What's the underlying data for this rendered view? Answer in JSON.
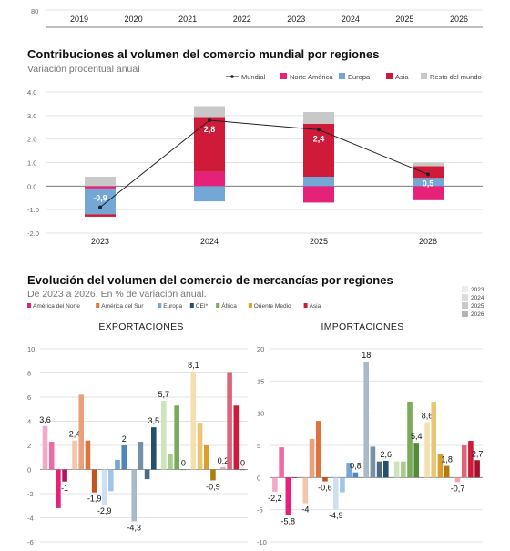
{
  "top_strip": {
    "tick_label": "80",
    "years": [
      "2019",
      "2020",
      "2021",
      "2022",
      "2023",
      "2024",
      "2025",
      "2026"
    ]
  },
  "colors": {
    "norteamerica": "#e6217a",
    "europa": "#74a6d6",
    "asia": "#cf1a3a",
    "resto": "#c8c8c8",
    "mundial_line": "#222222",
    "grid": "#e3e3e3"
  },
  "chart_data": [
    {
      "type": "bar",
      "stacked": true,
      "title": "Contribuciones al volumen del comercio mundial por regiones",
      "subtitle": "Variación procentual anual",
      "categories": [
        "2023",
        "2024",
        "2025",
        "2026"
      ],
      "ylim": [
        -2,
        4
      ],
      "yticks": [
        "4.0",
        "3.0",
        "2.0",
        "1.0",
        "0.0",
        "-1.0",
        "-2.0"
      ],
      "grid": true,
      "legend_position": "top-right",
      "series": [
        {
          "name": "Norte América",
          "key": "norteamerica",
          "values": [
            -0.1,
            0.6,
            -0.7,
            -0.6
          ]
        },
        {
          "name": "Europa",
          "key": "europa",
          "values": [
            -1.1,
            -0.65,
            0.4,
            0.35
          ]
        },
        {
          "name": "Asia",
          "key": "asia",
          "values": [
            -0.1,
            2.3,
            2.25,
            0.5
          ]
        },
        {
          "name": "Resto del mundo",
          "key": "resto",
          "values": [
            0.4,
            0.5,
            0.5,
            0.15
          ]
        }
      ],
      "line": {
        "name": "Mundial",
        "values": [
          -0.9,
          2.8,
          2.4,
          0.5
        ],
        "labels": [
          "-0,9",
          "2,8",
          "2,4",
          "0,5"
        ]
      }
    },
    {
      "type": "bar",
      "title": "EXPORTACIONES",
      "ylim": [
        -6,
        10
      ],
      "yticks": [
        "10",
        "8",
        "6",
        "4",
        "2",
        "0",
        "-2",
        "-4",
        "-6"
      ],
      "categories": [
        "América del Norte",
        "América del Sur",
        "Europa",
        "CEI*",
        "África",
        "Oriente Medio",
        "Asia"
      ],
      "years": [
        "2023",
        "2024",
        "2025",
        "2026"
      ],
      "values": [
        [
          3.6,
          2.3,
          -3.2,
          -1.0
        ],
        [
          2.4,
          6.2,
          2.4,
          -1.9
        ],
        [
          -2.9,
          -1.8,
          0.8,
          2.0
        ],
        [
          -4.3,
          2.3,
          -0.8,
          3.5
        ],
        [
          5.7,
          1.3,
          5.3,
          0.0
        ],
        [
          8.1,
          3.8,
          2.0,
          -0.9
        ],
        [
          0.2,
          8.0,
          5.3,
          0.0
        ]
      ],
      "labels": [
        [
          "3,6",
          "",
          "",
          "-1"
        ],
        [
          "2,4",
          "",
          "",
          "-1,9"
        ],
        [
          "-2,9",
          "",
          "",
          "2"
        ],
        [
          "-4,3",
          "",
          "",
          "3,5"
        ],
        [
          "5,7",
          "",
          "",
          "0"
        ],
        [
          "8,1",
          "",
          "",
          "-0,9"
        ],
        [
          "0,2",
          "",
          "",
          "0"
        ]
      ]
    },
    {
      "type": "bar",
      "title": "IMPORTACIONES",
      "ylim": [
        -10,
        20
      ],
      "yticks": [
        "20",
        "15",
        "10",
        "5",
        "0",
        "-5",
        "-10"
      ],
      "categories": [
        "América del Norte",
        "América del Sur",
        "Europa",
        "CEI*",
        "África",
        "Oriente Medio",
        "Asia"
      ],
      "years": [
        "2023",
        "2024",
        "2025",
        "2026"
      ],
      "values": [
        [
          -2.2,
          4.7,
          -5.8,
          0.0
        ],
        [
          -4.0,
          6.0,
          8.8,
          -0.6
        ],
        [
          -4.9,
          -2.3,
          2.3,
          0.8
        ],
        [
          18.0,
          4.8,
          2.5,
          2.6
        ],
        [
          2.5,
          2.5,
          11.8,
          5.4
        ],
        [
          8.6,
          11.8,
          3.6,
          1.8
        ],
        [
          -0.7,
          5.0,
          5.7,
          2.7
        ]
      ],
      "labels": [
        [
          "-2,2",
          "",
          "-5,8",
          ""
        ],
        [
          "-4",
          "",
          "",
          "-0,6"
        ],
        [
          "-4,9",
          "",
          "",
          "0,8"
        ],
        [
          "18",
          "",
          "",
          "2,6"
        ],
        [
          "",
          "",
          "",
          "5,4"
        ],
        [
          "8,6",
          "",
          "",
          "1,8"
        ],
        [
          "-0,7",
          "",
          "",
          "2,7"
        ]
      ]
    }
  ],
  "section2": {
    "title": "Evolución del volumen del comercio de mercancías por regiones",
    "subtitle": "De 2023 a 2026. En % de variación anual.",
    "region_legend": [
      {
        "name": "América del Norte",
        "color": "#e6217a"
      },
      {
        "name": "América del Sur",
        "color": "#e0733b"
      },
      {
        "name": "Europa",
        "color": "#74a6d6"
      },
      {
        "name": "CEI*",
        "color": "#24506e"
      },
      {
        "name": "África",
        "color": "#7aaa5a"
      },
      {
        "name": "Oriente Medio",
        "color": "#d9a02c"
      },
      {
        "name": "Asia",
        "color": "#cf1a3a"
      }
    ],
    "year_legend": [
      "2023",
      "2024",
      "2025",
      "2026"
    ],
    "shades": {
      "América del Norte": [
        "#f2a9cb",
        "#ec6aa6",
        "#e6217a",
        "#b5145e"
      ],
      "América del Sur": [
        "#f3c5ac",
        "#eba07a",
        "#e0733b",
        "#c0551f"
      ],
      "Europa": [
        "#cde0f2",
        "#a3c4e6",
        "#74a6d6",
        "#4f86bf"
      ],
      "CEI*": [
        "#a8bac8",
        "#7690a6",
        "#4d6a84",
        "#24506e"
      ],
      "África": [
        "#cfe3bd",
        "#a9cc8c",
        "#7aaa5a",
        "#558a3a"
      ],
      "Oriente Medio": [
        "#f3dfb0",
        "#e9c574",
        "#d9a02c",
        "#b07c12"
      ],
      "Asia": [
        "#f0a6b3",
        "#e06479",
        "#cf1a3a",
        "#a30f2a"
      ]
    }
  }
}
